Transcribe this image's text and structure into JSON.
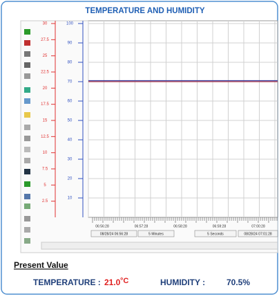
{
  "title": "TEMPERATURE AND HUMIDITY",
  "temperature_axis": {
    "lim": [
      0,
      30
    ],
    "ticks": [
      30,
      27.5,
      25,
      22.5,
      20,
      17.5,
      15,
      12.5,
      10,
      7.5,
      5,
      2.5
    ]
  },
  "humidity_axis": {
    "lim": [
      0,
      100
    ],
    "ticks": [
      100,
      90,
      80,
      70,
      60,
      50,
      40,
      30,
      20,
      10
    ]
  },
  "time_labels": [
    "06:56:28",
    "06:57:28",
    "06:58:28",
    "06:59:28",
    "07:00:28"
  ],
  "time_bar": [
    "08/28/24 06:56:28",
    "5 Minutes",
    "5 Seconds",
    "08/28/24 07:01:28"
  ],
  "present_value": {
    "heading": "Present Value",
    "temperature_label": "TEMPERATURE :",
    "temperature": "21.0",
    "temperature_unit": "°C",
    "humidity_label": "HUMIDITY :",
    "humidity": "70.5%"
  }
}
